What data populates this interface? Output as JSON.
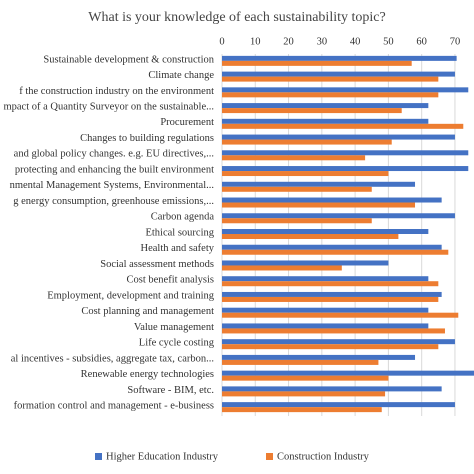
{
  "chart_data": {
    "type": "hbar",
    "title": "What is your knowledge of each sustainability topic?",
    "categories": [
      "Sustainable development & construction",
      "Climate change",
      "f the construction industry on the environment",
      "mpact of a Quantity Surveyor on the sustainable...",
      "Procurement",
      "Changes to building regulations",
      "and global policy changes. e.g. EU directives,...",
      "protecting and enhancing the built environment",
      "nmental Management Systems, Environmental...",
      "g energy consumption, greenhouse emissions,...",
      "Carbon agenda",
      "Ethical sourcing",
      "Health and safety",
      "Social assessment methods",
      "Cost benefit analysis",
      "Employment, development and training",
      "Cost planning and management",
      "Value management",
      "Life cycle costing",
      "al incentives - subsidies, aggregate tax, carbon...",
      "Renewable energy technologies",
      "Software - BIM, etc.",
      "formation control and management - e-business"
    ],
    "series": [
      {
        "name": "Higher Education Industry",
        "color": "#4472c4",
        "values": [
          70.5,
          70,
          74,
          62,
          62,
          70,
          74,
          74,
          58,
          66,
          70,
          62,
          66,
          50,
          62,
          66,
          62,
          62,
          70,
          58,
          76,
          66,
          70
        ]
      },
      {
        "name": "Construction Industry",
        "color": "#ed7d31",
        "values": [
          57,
          65,
          65,
          54,
          72.5,
          51,
          43,
          50,
          45,
          58,
          45,
          53,
          68,
          36,
          65,
          65,
          71,
          67,
          65,
          47,
          50,
          49,
          48
        ]
      }
    ],
    "xlim": [
      0,
      75
    ],
    "xticks": [
      0,
      10,
      20,
      30,
      40,
      50,
      60,
      70
    ],
    "grid": true
  }
}
